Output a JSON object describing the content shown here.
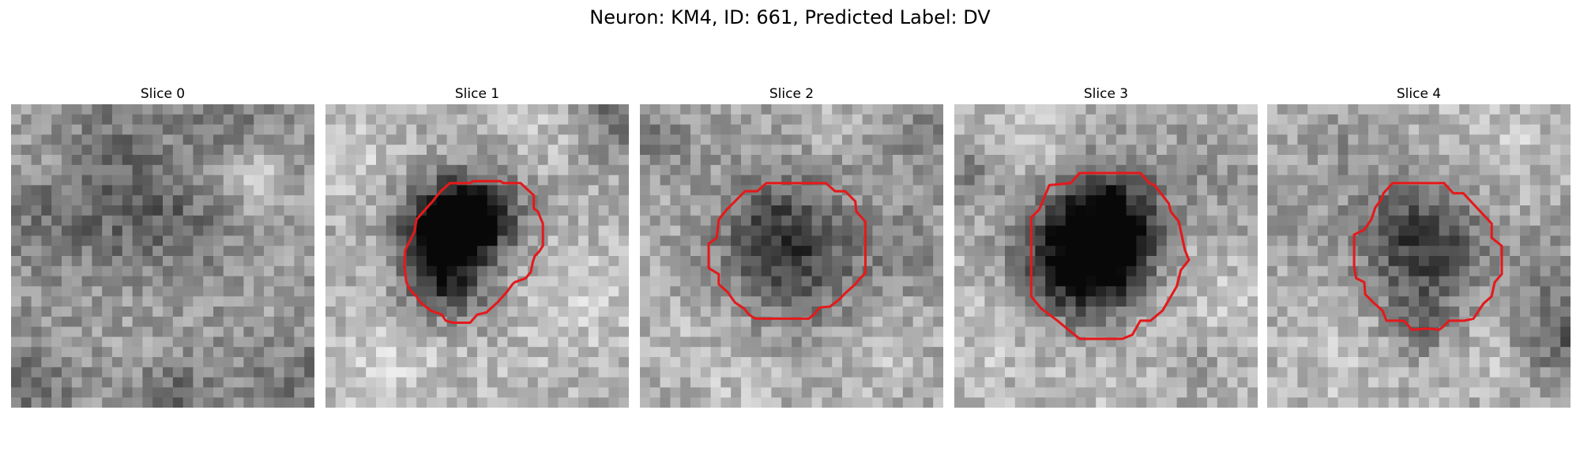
{
  "figure": {
    "title": "Neuron: KM4, ID: 661, Predicted Label: DV"
  },
  "panels": [
    {
      "title": "Slice 0",
      "has_contour": false
    },
    {
      "title": "Slice 1",
      "has_contour": true
    },
    {
      "title": "Slice 2",
      "has_contour": true
    },
    {
      "title": "Slice 3",
      "has_contour": true
    },
    {
      "title": "Slice 4",
      "has_contour": true
    }
  ],
  "colors": {
    "contour": "#e31a1c",
    "background": "#ffffff"
  }
}
